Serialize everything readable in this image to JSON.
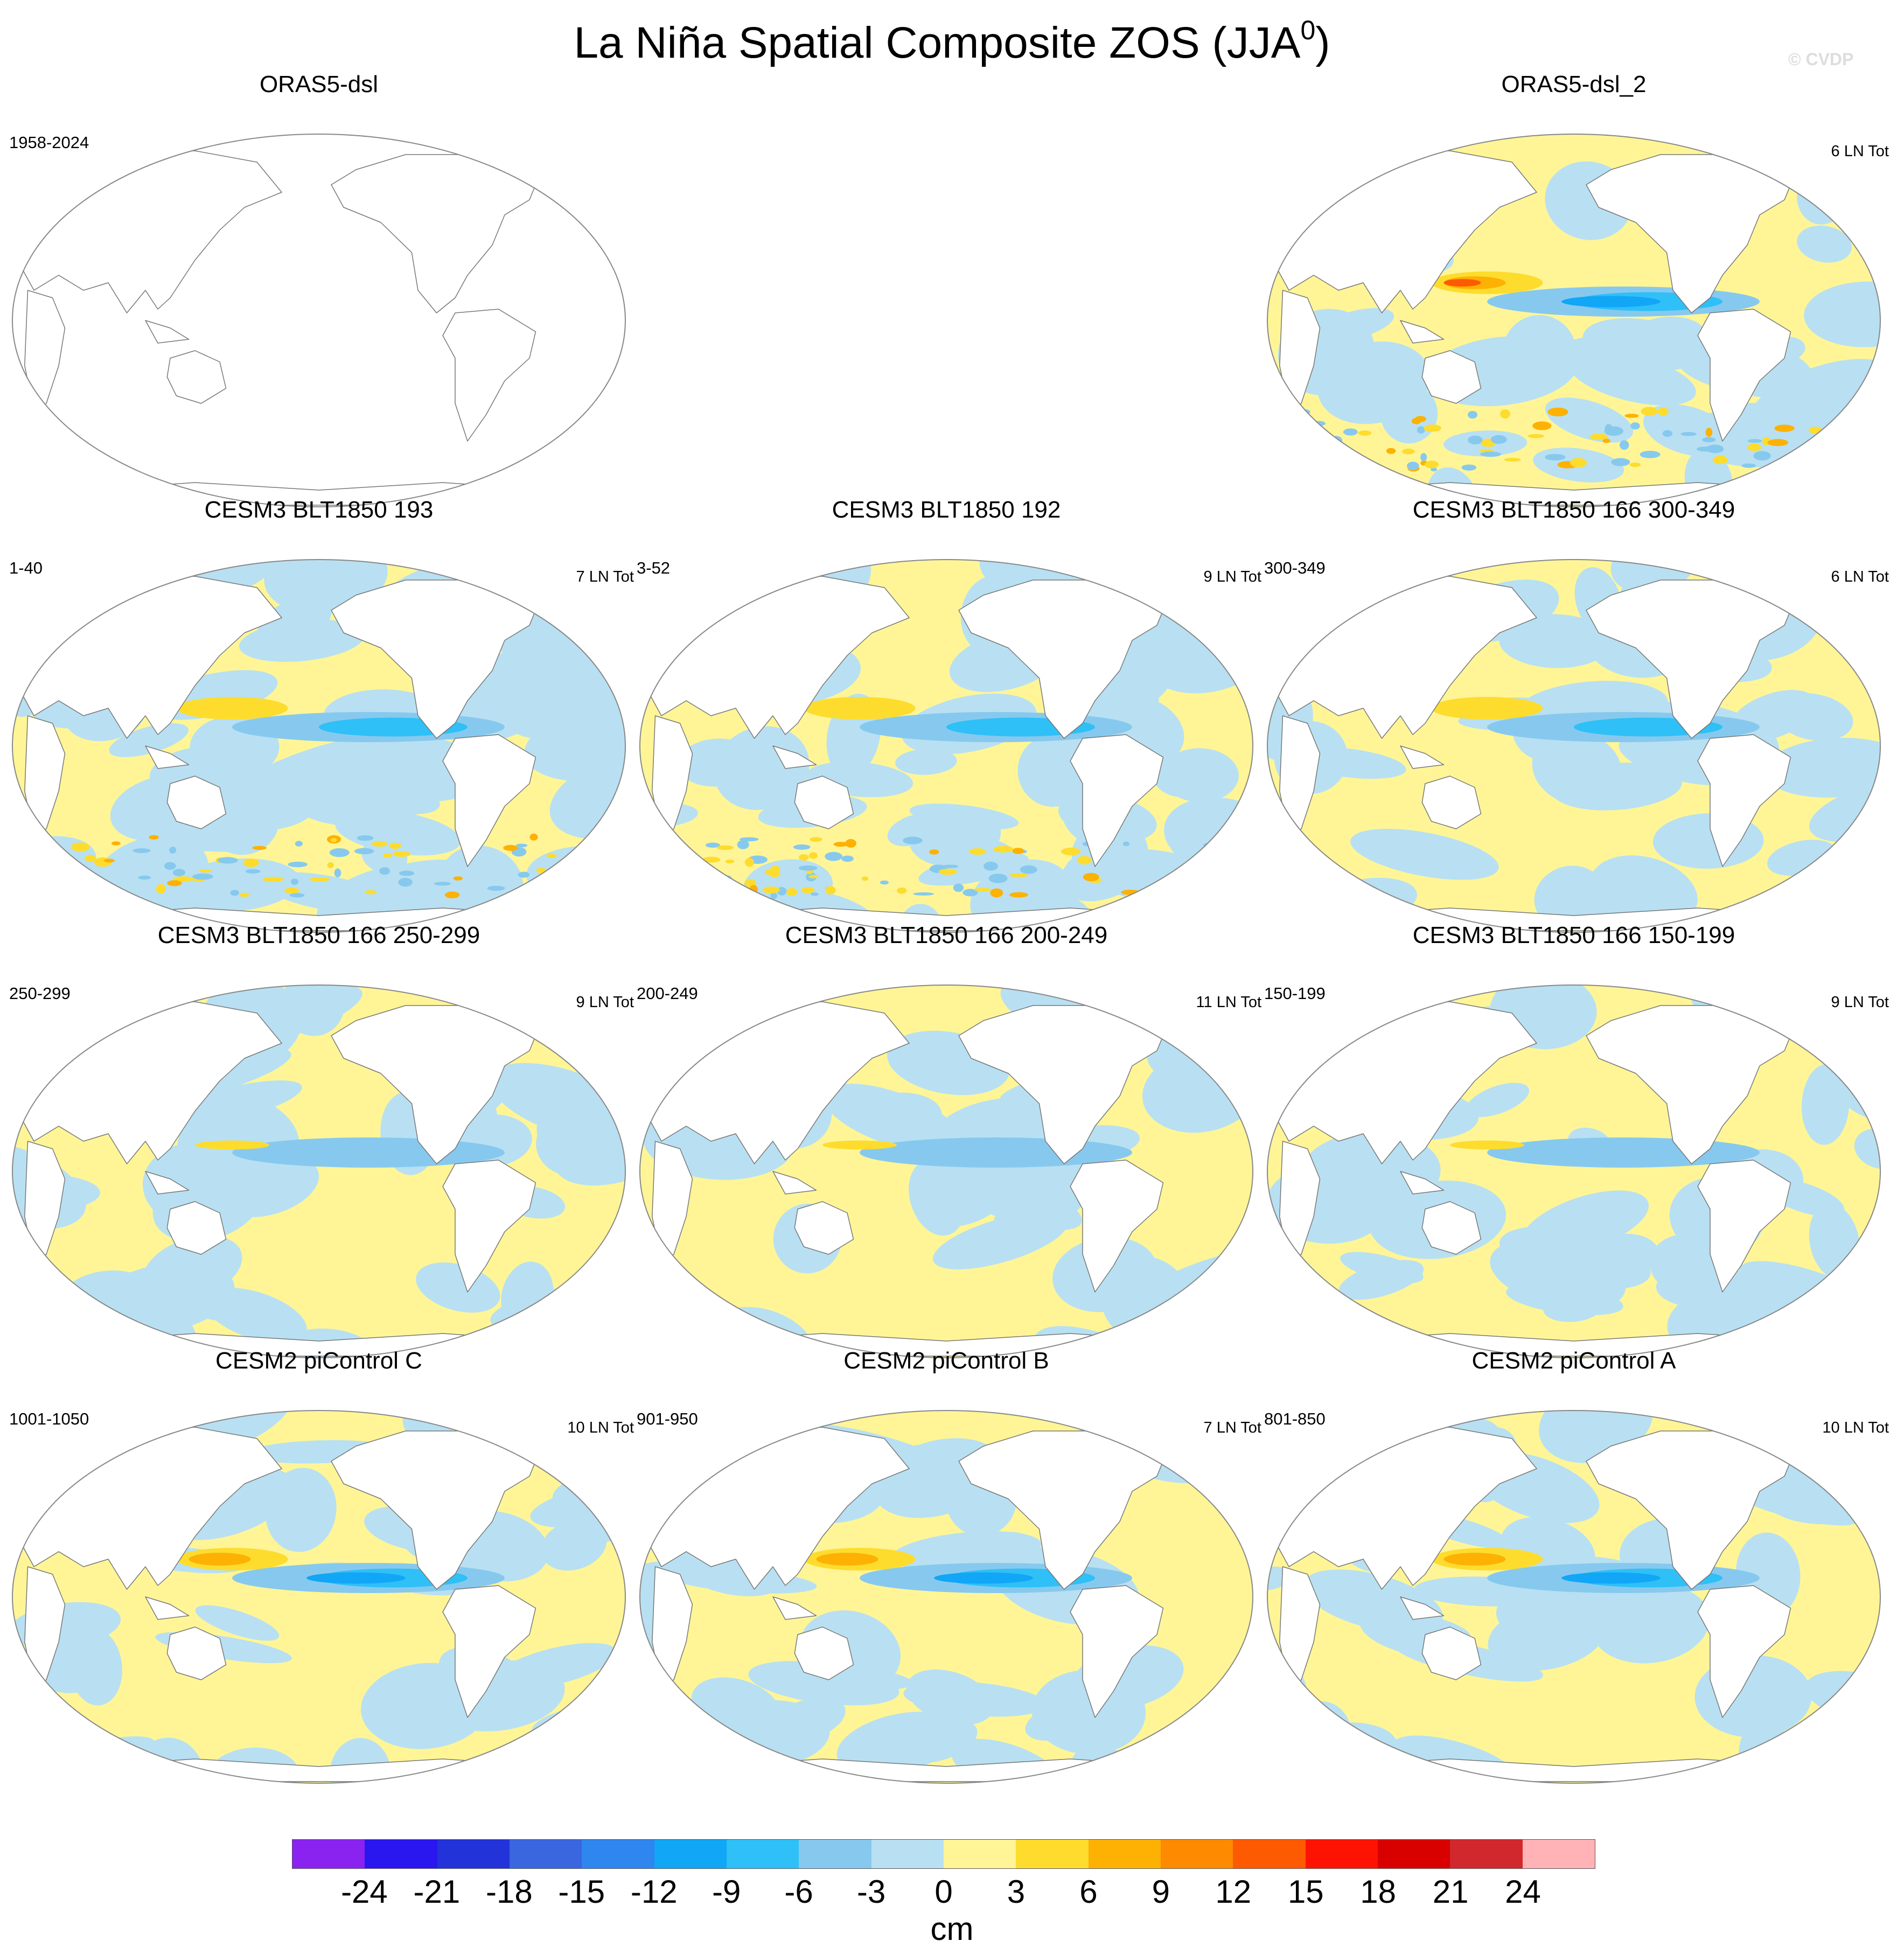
{
  "title": {
    "main": "La Niña Spatial Composite ZOS (JJA",
    "sup": "0",
    "close": ")"
  },
  "credit": "© CVDP",
  "panels": [
    {
      "title": "ORAS5-dsl",
      "left": "1958-2024",
      "right": "",
      "empty": true
    },
    {
      "title": "ORAS5-dsl_2",
      "left": "",
      "right": "6 LN Tot",
      "style": "obs",
      "seed": 11
    },
    {
      "title": "CESM3 BLT1850 193",
      "left": "1-40",
      "right": "7 LN Tot",
      "style": "noisy",
      "seed": 23
    },
    {
      "title": "CESM3 BLT1850 192",
      "left": "3-52",
      "right": "9 LN Tot",
      "style": "noisy",
      "seed": 37
    },
    {
      "title": "CESM3 BLT1850 166 300-349",
      "left": "300-349",
      "right": "6 LN Tot",
      "style": "smooth",
      "seed": 41
    },
    {
      "title": "CESM3 BLT1850 166 250-299",
      "left": "250-299",
      "right": "9 LN Tot",
      "style": "weak",
      "seed": 53
    },
    {
      "title": "CESM3 BLT1850 166 200-249",
      "left": "200-249",
      "right": "11 LN Tot",
      "style": "weak",
      "seed": 61
    },
    {
      "title": "CESM3 BLT1850 166 150-199",
      "left": "150-199",
      "right": "9 LN Tot",
      "style": "weak",
      "seed": 73
    },
    {
      "title": "CESM2 piControl C",
      "left": "1001-1050",
      "right": "10 LN Tot",
      "style": "strong",
      "seed": 83
    },
    {
      "title": "CESM2 piControl B",
      "left": "901-950",
      "right": "7 LN Tot",
      "style": "strong",
      "seed": 97
    },
    {
      "title": "CESM2 piControl A",
      "left": "801-850",
      "right": "10 LN Tot",
      "style": "strong",
      "seed": 101
    }
  ],
  "colorbar": {
    "unit": "cm",
    "ticks": [
      "-24",
      "-21",
      "-18",
      "-15",
      "-12",
      "-9",
      "-6",
      "-3",
      "0",
      "3",
      "6",
      "9",
      "12",
      "15",
      "18",
      "21",
      "24"
    ],
    "colors": [
      "#8a22f0",
      "#2a16ee",
      "#2233d9",
      "#3a66e0",
      "#2f86ee",
      "#11a6f6",
      "#2ec0f6",
      "#87c9ee",
      "#b8e0f2",
      "#fff597",
      "#fddc2e",
      "#fdb103",
      "#fe8a00",
      "#fe5a02",
      "#fe1303",
      "#d80100",
      "#d0282c",
      "#ffb3b6"
    ]
  }
}
